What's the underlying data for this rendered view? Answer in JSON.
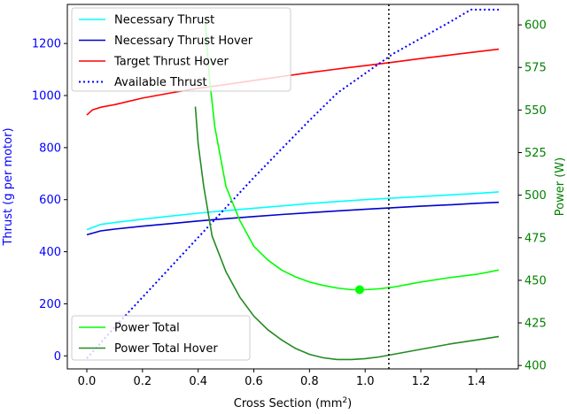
{
  "chart_data": {
    "type": "line",
    "title": "",
    "xlabel": "Cross Section (mm",
    "xlabel_sup": "2",
    "xlabel_end": ")",
    "ylabel_left": "Thrust (g per motor)",
    "ylabel_right": "Power (W)",
    "xlim": [
      -0.07,
      1.55
    ],
    "ylim_left": [
      -50,
      1350
    ],
    "ylim_right": [
      398,
      612
    ],
    "x_ticks": [
      0.0,
      0.2,
      0.4,
      0.6,
      0.8,
      1.0,
      1.2,
      1.4
    ],
    "x_tick_labels": [
      "0.0",
      "0.2",
      "0.4",
      "0.6",
      "0.8",
      "1.0",
      "1.2",
      "1.4"
    ],
    "left_ticks": [
      0,
      200,
      400,
      600,
      800,
      1000,
      1200
    ],
    "left_tick_labels": [
      "0",
      "200",
      "400",
      "600",
      "800",
      "1000",
      "1200"
    ],
    "right_ticks": [
      400,
      425,
      450,
      475,
      500,
      525,
      550,
      575,
      600
    ],
    "right_tick_labels": [
      "400",
      "425",
      "450",
      "475",
      "500",
      "525",
      "550",
      "575",
      "600"
    ],
    "colors": {
      "left_axis": "#0000ff",
      "right_axis": "#008000",
      "necessary_thrust": "#00ffff",
      "necessary_thrust_hover": "#0000cd",
      "target_thrust_hover": "#ff0000",
      "available_thrust": "#0000ff",
      "power_total": "#00ff00",
      "power_total_hover": "#228b22",
      "vline": "#000000"
    },
    "vertical_line_x": 1.085,
    "legend_top": {
      "placement": "top-left",
      "entries": [
        {
          "label": "Necessary Thrust",
          "color": "#00ffff",
          "style": "solid"
        },
        {
          "label": "Necessary Thrust Hover",
          "color": "#0000cd",
          "style": "solid"
        },
        {
          "label": "Target Thrust Hover",
          "color": "#ff0000",
          "style": "solid"
        },
        {
          "label": "Available Thrust",
          "color": "#0000ff",
          "style": "dotted"
        }
      ]
    },
    "legend_bottom": {
      "placement": "bottom-left",
      "entries": [
        {
          "label": "Power Total",
          "color": "#00ff00",
          "style": "solid"
        },
        {
          "label": "Power Total Hover",
          "color": "#228b22",
          "style": "solid"
        }
      ]
    },
    "series": [
      {
        "name": "Necessary Thrust",
        "axis": "left",
        "color": "#00ffff",
        "style": "solid",
        "x": [
          0.0,
          0.05,
          0.1,
          0.2,
          0.3,
          0.4,
          0.5,
          0.6,
          0.7,
          0.8,
          0.9,
          1.0,
          1.1,
          1.2,
          1.3,
          1.4,
          1.48
        ],
        "y": [
          485,
          505,
          512,
          525,
          537,
          548,
          558,
          567,
          576,
          585,
          593,
          600,
          606,
          612,
          618,
          624,
          630
        ]
      },
      {
        "name": "Necessary Thrust Hover",
        "axis": "left",
        "color": "#0000cd",
        "style": "solid",
        "x": [
          0.0,
          0.05,
          0.1,
          0.2,
          0.3,
          0.4,
          0.5,
          0.6,
          0.7,
          0.8,
          0.9,
          1.0,
          1.1,
          1.2,
          1.3,
          1.4,
          1.48
        ],
        "y": [
          465,
          480,
          487,
          498,
          508,
          518,
          527,
          535,
          543,
          550,
          557,
          563,
          569,
          575,
          580,
          586,
          590
        ]
      },
      {
        "name": "Target Thrust Hover",
        "axis": "left",
        "color": "#ff0000",
        "style": "solid",
        "x": [
          0.0,
          0.02,
          0.05,
          0.1,
          0.2,
          0.3,
          0.4,
          0.5,
          0.6,
          0.7,
          0.8,
          0.9,
          1.0,
          1.1,
          1.2,
          1.3,
          1.4,
          1.48
        ],
        "y": [
          925,
          945,
          955,
          965,
          990,
          1010,
          1028,
          1042,
          1058,
          1073,
          1088,
          1102,
          1115,
          1128,
          1142,
          1155,
          1168,
          1178
        ]
      },
      {
        "name": "Available Thrust",
        "axis": "left",
        "color": "#0000ff",
        "style": "dotted",
        "x": [
          0.0,
          0.1,
          0.2,
          0.3,
          0.4,
          0.5,
          0.6,
          0.7,
          0.8,
          0.9,
          1.0,
          1.1,
          1.2,
          1.3,
          1.38,
          1.4,
          1.48
        ],
        "y": [
          -10,
          110,
          225,
          340,
          455,
          570,
          685,
          795,
          905,
          1010,
          1085,
          1160,
          1220,
          1280,
          1330,
          1330,
          1330
        ]
      },
      {
        "name": "Power Total",
        "axis": "right",
        "color": "#00ff00",
        "style": "solid",
        "x": [
          0.425,
          0.44,
          0.46,
          0.5,
          0.55,
          0.6,
          0.65,
          0.7,
          0.75,
          0.8,
          0.85,
          0.9,
          0.95,
          0.98,
          1.0,
          1.05,
          1.1,
          1.15,
          1.2,
          1.3,
          1.4,
          1.48
        ],
        "y": [
          603,
          570,
          540,
          505,
          485,
          470,
          462,
          456,
          452,
          449,
          447,
          445.5,
          444.5,
          444.5,
          444.5,
          445,
          446,
          447.5,
          449,
          451.5,
          453.5,
          456
        ]
      },
      {
        "name": "Power Total Hover",
        "axis": "right",
        "color": "#228b22",
        "style": "solid",
        "x": [
          0.39,
          0.4,
          0.42,
          0.45,
          0.5,
          0.55,
          0.6,
          0.65,
          0.7,
          0.75,
          0.8,
          0.85,
          0.9,
          0.95,
          1.0,
          1.05,
          1.1,
          1.2,
          1.3,
          1.4,
          1.48
        ],
        "y": [
          552,
          530,
          505,
          476,
          455,
          440,
          429,
          421,
          415,
          410,
          406.5,
          404.5,
          403.5,
          403.5,
          404,
          405,
          406.5,
          409.5,
          412.5,
          415,
          417
        ]
      }
    ],
    "marker": {
      "series": "Power Total",
      "x": 0.98,
      "y": 444.5,
      "color": "#00ff00"
    }
  }
}
